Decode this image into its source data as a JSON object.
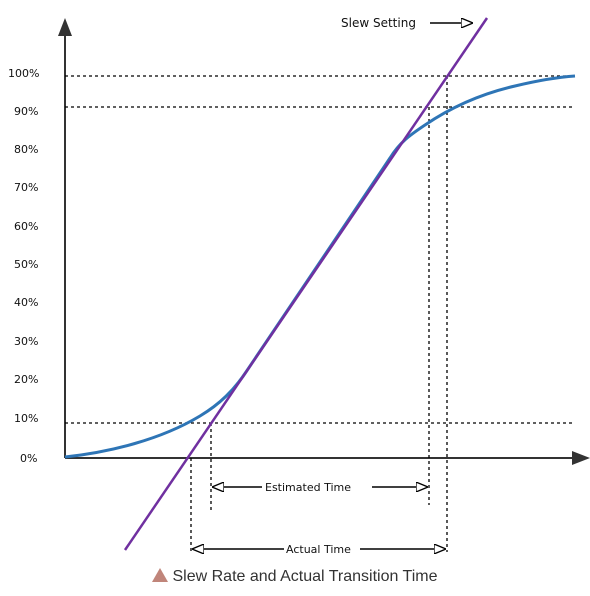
{
  "y_ticks": [
    "100%",
    "90%",
    "80%",
    "70%",
    "60%",
    "50%",
    "40%",
    "30%",
    "20%",
    "10%",
    "0%"
  ],
  "labels": {
    "slew_setting": "Slew Setting",
    "estimated_time": "Estimated Time",
    "actual_time": "Actual Time"
  },
  "caption": "Slew Rate and Actual Transition Time",
  "colors": {
    "curve": "#2e75b6",
    "slew_line": "#7030a0",
    "caption_marker": "#c0857a"
  }
}
